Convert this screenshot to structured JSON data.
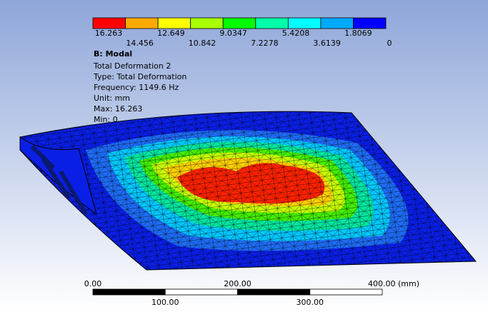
{
  "legend": {
    "colors": [
      "#ff0000",
      "#ffaa00",
      "#ffff00",
      "#aaff00",
      "#00ff00",
      "#00ffaa",
      "#00ffff",
      "#00aaff",
      "#0000ff"
    ],
    "top_labels": [
      "16.263",
      "12.649",
      "9.0347",
      "5.4208",
      "1.8069"
    ],
    "bottom_labels": [
      "14.456",
      "10.842",
      "7.2278",
      "3.6139",
      "0"
    ]
  },
  "info": {
    "title": "B: Modal",
    "lines": [
      "Total Deformation 2",
      "Type: Total Deformation",
      "Frequency: 1149.6 Hz",
      "Unit: mm",
      "Max: 16.263",
      "Min: 0"
    ]
  },
  "scale_bar": {
    "top_labels": [
      "0.00",
      "200.00",
      "400.00 (mm)"
    ],
    "bottom_labels": [
      "100.00",
      "300.00"
    ]
  }
}
